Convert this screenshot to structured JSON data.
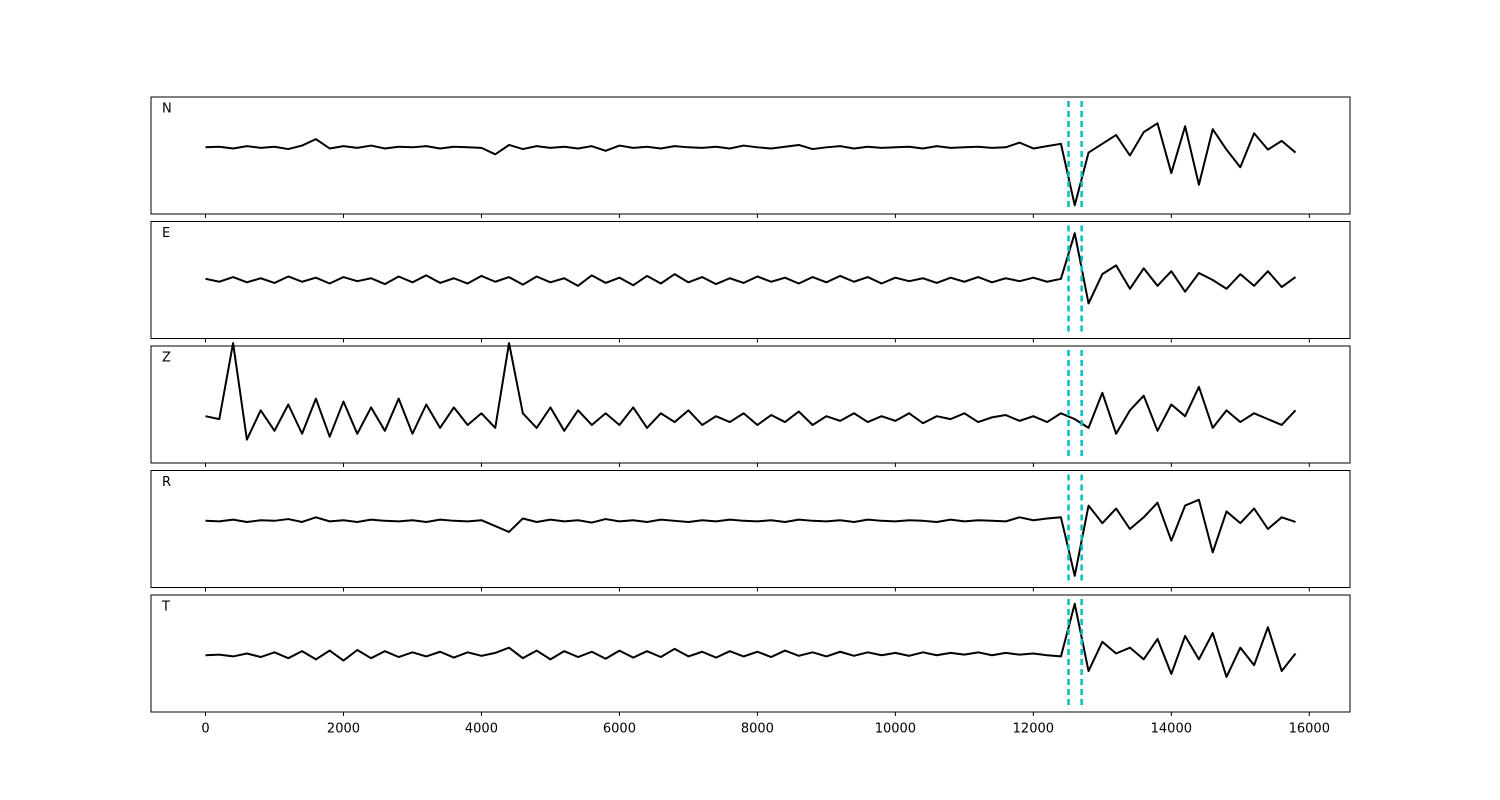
{
  "chart_data": {
    "type": "line",
    "layout": "stacked",
    "x": [
      0,
      200,
      400,
      600,
      800,
      1000,
      1200,
      1400,
      1600,
      1800,
      2000,
      2200,
      2400,
      2600,
      2800,
      3000,
      3200,
      3400,
      3600,
      3800,
      4000,
      4200,
      4400,
      4600,
      4800,
      5000,
      5200,
      5400,
      5600,
      5800,
      6000,
      6200,
      6400,
      6600,
      6800,
      7000,
      7200,
      7400,
      7600,
      7800,
      8000,
      8200,
      8400,
      8600,
      8800,
      9000,
      9200,
      9400,
      9600,
      9800,
      10000,
      10200,
      10400,
      10600,
      10800,
      11000,
      11200,
      11400,
      11600,
      11800,
      12000,
      12200,
      12400,
      12600,
      12800,
      13000,
      13200,
      13400,
      13600,
      13800,
      14000,
      14200,
      14400,
      14600,
      14800,
      15000,
      15200,
      15400,
      15600,
      15800
    ],
    "xlim": [
      -790,
      16590
    ],
    "xticks": [
      0,
      2000,
      4000,
      6000,
      8000,
      10000,
      12000,
      14000,
      16000
    ],
    "ylim": [
      -1,
      1
    ],
    "vlines": [
      12510,
      12700
    ],
    "vline_color": "#00bfbf",
    "series": [
      {
        "name": "N",
        "color": "#000000",
        "values": [
          0.14,
          0.15,
          0.12,
          0.16,
          0.13,
          0.15,
          0.11,
          0.17,
          0.28,
          0.12,
          0.16,
          0.13,
          0.17,
          0.12,
          0.15,
          0.14,
          0.16,
          0.12,
          0.15,
          0.14,
          0.13,
          0.02,
          0.18,
          0.11,
          0.16,
          0.13,
          0.15,
          0.12,
          0.16,
          0.08,
          0.17,
          0.13,
          0.15,
          0.12,
          0.16,
          0.14,
          0.13,
          0.15,
          0.12,
          0.17,
          0.14,
          0.12,
          0.15,
          0.18,
          0.11,
          0.14,
          0.16,
          0.12,
          0.15,
          0.13,
          0.14,
          0.15,
          0.12,
          0.16,
          0.13,
          0.14,
          0.15,
          0.13,
          0.14,
          0.22,
          0.12,
          0.16,
          0.2,
          -0.85,
          0.05,
          0.2,
          0.35,
          0.0,
          0.4,
          0.55,
          -0.3,
          0.5,
          -0.5,
          0.45,
          0.1,
          -0.2,
          0.38,
          0.1,
          0.25,
          0.05
        ]
      },
      {
        "name": "E",
        "color": "#000000",
        "values": [
          0.02,
          -0.03,
          0.05,
          -0.04,
          0.03,
          -0.05,
          0.06,
          -0.03,
          0.04,
          -0.06,
          0.05,
          -0.02,
          0.03,
          -0.07,
          0.06,
          -0.04,
          0.08,
          -0.05,
          0.03,
          -0.06,
          0.07,
          -0.03,
          0.05,
          -0.08,
          0.06,
          -0.04,
          0.03,
          -0.1,
          0.08,
          -0.05,
          0.04,
          -0.09,
          0.07,
          -0.06,
          0.1,
          -0.04,
          0.05,
          -0.07,
          0.03,
          -0.05,
          0.06,
          -0.03,
          0.04,
          -0.06,
          0.05,
          -0.04,
          0.07,
          -0.03,
          0.05,
          -0.06,
          0.04,
          -0.02,
          0.03,
          -0.05,
          0.04,
          -0.03,
          0.05,
          -0.04,
          0.03,
          -0.02,
          0.04,
          -0.03,
          0.02,
          0.8,
          -0.4,
          0.1,
          0.25,
          -0.15,
          0.2,
          -0.1,
          0.15,
          -0.2,
          0.12,
          0.0,
          -0.15,
          0.1,
          -0.1,
          0.15,
          -0.12,
          0.05
        ]
      },
      {
        "name": "Z",
        "color": "#000000",
        "values": [
          -0.2,
          -0.25,
          1.05,
          -0.6,
          -0.1,
          -0.45,
          0.0,
          -0.5,
          0.1,
          -0.55,
          0.05,
          -0.5,
          -0.05,
          -0.45,
          0.1,
          -0.5,
          0.0,
          -0.4,
          -0.05,
          -0.35,
          -0.15,
          -0.4,
          1.05,
          -0.15,
          -0.4,
          -0.05,
          -0.45,
          -0.1,
          -0.35,
          -0.15,
          -0.35,
          -0.05,
          -0.4,
          -0.15,
          -0.3,
          -0.1,
          -0.35,
          -0.2,
          -0.3,
          -0.15,
          -0.35,
          -0.18,
          -0.3,
          -0.12,
          -0.35,
          -0.2,
          -0.28,
          -0.15,
          -0.3,
          -0.2,
          -0.28,
          -0.15,
          -0.32,
          -0.2,
          -0.25,
          -0.15,
          -0.3,
          -0.22,
          -0.18,
          -0.28,
          -0.2,
          -0.3,
          -0.15,
          -0.25,
          -0.4,
          0.2,
          -0.5,
          -0.1,
          0.15,
          -0.45,
          0.0,
          -0.2,
          0.3,
          -0.4,
          -0.1,
          -0.3,
          -0.15,
          -0.25,
          -0.35,
          -0.1
        ]
      },
      {
        "name": "R",
        "color": "#000000",
        "values": [
          0.14,
          0.13,
          0.16,
          0.12,
          0.15,
          0.14,
          0.17,
          0.12,
          0.2,
          0.13,
          0.15,
          0.12,
          0.16,
          0.14,
          0.13,
          0.15,
          0.12,
          0.16,
          0.14,
          0.13,
          0.15,
          0.05,
          -0.05,
          0.18,
          0.12,
          0.16,
          0.13,
          0.15,
          0.11,
          0.17,
          0.13,
          0.15,
          0.12,
          0.16,
          0.14,
          0.12,
          0.15,
          0.13,
          0.16,
          0.14,
          0.13,
          0.15,
          0.12,
          0.16,
          0.14,
          0.13,
          0.15,
          0.12,
          0.16,
          0.14,
          0.13,
          0.15,
          0.14,
          0.12,
          0.16,
          0.13,
          0.15,
          0.14,
          0.13,
          0.2,
          0.15,
          0.18,
          0.2,
          -0.8,
          0.4,
          0.1,
          0.35,
          0.0,
          0.2,
          0.45,
          -0.2,
          0.4,
          0.5,
          -0.4,
          0.3,
          0.1,
          0.35,
          0.0,
          0.2,
          0.12
        ]
      },
      {
        "name": "T",
        "color": "#000000",
        "values": [
          -0.03,
          -0.02,
          -0.05,
          0.0,
          -0.06,
          0.02,
          -0.08,
          0.04,
          -0.1,
          0.05,
          -0.12,
          0.06,
          -0.08,
          0.04,
          -0.06,
          0.02,
          -0.05,
          0.03,
          -0.07,
          0.02,
          -0.04,
          0.01,
          0.1,
          -0.08,
          0.05,
          -0.1,
          0.04,
          -0.06,
          0.03,
          -0.09,
          0.05,
          -0.07,
          0.04,
          -0.06,
          0.08,
          -0.05,
          0.03,
          -0.07,
          0.04,
          -0.05,
          0.03,
          -0.06,
          0.05,
          -0.04,
          0.02,
          -0.05,
          0.03,
          -0.04,
          0.02,
          -0.03,
          0.01,
          -0.04,
          0.02,
          -0.03,
          0.01,
          -0.02,
          0.02,
          -0.03,
          0.01,
          -0.02,
          0.0,
          -0.03,
          -0.05,
          0.85,
          -0.3,
          0.2,
          0.0,
          0.1,
          -0.1,
          0.25,
          -0.35,
          0.3,
          -0.1,
          0.35,
          -0.4,
          0.1,
          -0.2,
          0.45,
          -0.3,
          0.0
        ]
      }
    ]
  }
}
